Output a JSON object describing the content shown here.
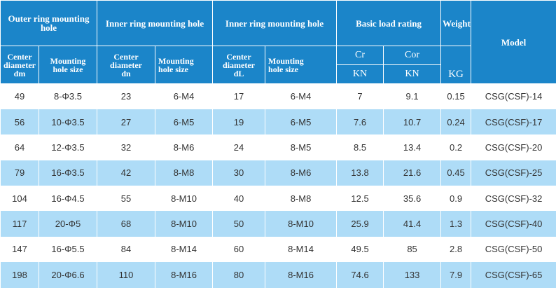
{
  "header": {
    "outer_ring": "Outer ring mounting hole",
    "inner_ring_1": "Inner ring mounting hole",
    "inner_ring_2": "Inner ring mounting hole",
    "basic_load": "Basic load rating",
    "weight": "Weight",
    "model": "Model",
    "center_dm_1": "Center",
    "center_dm_2": "diameter",
    "center_dm_3": "dm",
    "mount_size_1a": "Mounting",
    "mount_size_1b": "hole size",
    "center_dn_1": "Center diameter",
    "center_dn_2": "dn",
    "mount_size_2a": "Mounting",
    "mount_size_2b": "hole size",
    "center_dl_1": "Center",
    "center_dl_2": "diameter",
    "center_dl_3": "dL",
    "mount_size_3a": "Mounting",
    "mount_size_3b": "hole size",
    "cr": "Cr",
    "cor": "Cor",
    "kn_1": "KN",
    "kn_2": "KN",
    "kg": "KG"
  },
  "rows": [
    {
      "dm": "49",
      "hole1": "8-Φ3.5",
      "dn": "23",
      "hole2": "6-M4",
      "dl": "17",
      "hole3": "6-M4",
      "cr": "7",
      "cor": "9.1",
      "weight": "0.15",
      "model": "CSG(CSF)-14"
    },
    {
      "dm": "56",
      "hole1": "10-Φ3.5",
      "dn": "27",
      "hole2": "6-M5",
      "dl": "19",
      "hole3": "6-M5",
      "cr": "7.6",
      "cor": "10.7",
      "weight": "0.24",
      "model": "CSG(CSF)-17"
    },
    {
      "dm": "64",
      "hole1": "12-Φ3.5",
      "dn": "32",
      "hole2": "8-M6",
      "dl": "24",
      "hole3": "8-M5",
      "cr": "8.5",
      "cor": "13.4",
      "weight": "0.2",
      "model": "CSG(CSF)-20"
    },
    {
      "dm": "79",
      "hole1": "16-Φ3.5",
      "dn": "42",
      "hole2": "8-M8",
      "dl": "30",
      "hole3": "8-M6",
      "cr": "13.8",
      "cor": "21.6",
      "weight": "0.45",
      "model": "CSG(CSF)-25"
    },
    {
      "dm": "104",
      "hole1": "16-Φ4.5",
      "dn": "55",
      "hole2": "8-M10",
      "dl": "40",
      "hole3": "8-M8",
      "cr": "12.5",
      "cor": "35.6",
      "weight": "0.9",
      "model": "CSG(CSF)-32"
    },
    {
      "dm": "117",
      "hole1": "20-Φ5",
      "dn": "68",
      "hole2": "8-M10",
      "dl": "50",
      "hole3": "8-M10",
      "cr": "25.9",
      "cor": "41.4",
      "weight": "1.3",
      "model": "CSG(CSF)-40"
    },
    {
      "dm": "147",
      "hole1": "16-Φ5.5",
      "dn": "84",
      "hole2": "8-M14",
      "dl": "60",
      "hole3": "8-M14",
      "cr": "49.5",
      "cor": "85",
      "weight": "2.8",
      "model": "CSG(CSF)-50"
    },
    {
      "dm": "198",
      "hole1": "20-Φ6.6",
      "dn": "110",
      "hole2": "8-M16",
      "dl": "80",
      "hole3": "8-M16",
      "cr": "74.6",
      "cor": "133",
      "weight": "7.9",
      "model": "CSG(CSF)-65"
    }
  ]
}
